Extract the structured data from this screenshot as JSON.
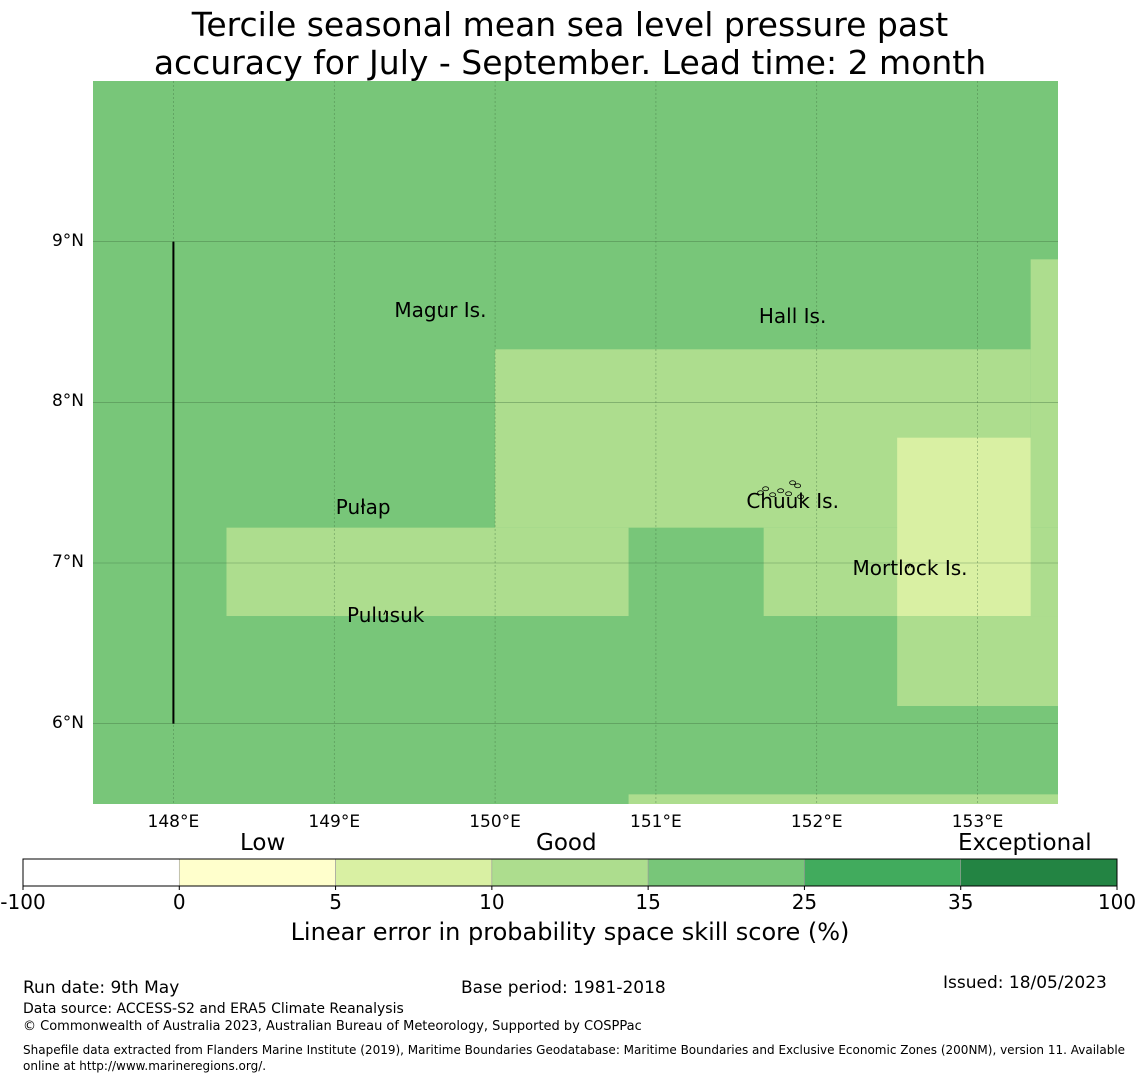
{
  "title": [
    "Tercile seasonal mean sea level pressure past",
    "accuracy for July - September. Lead time: 2 month"
  ],
  "map": {
    "lon_range": [
      147.5,
      153.5
    ],
    "lat_range": [
      5.5,
      10.0
    ],
    "lat_ticks": [
      {
        "value": 9,
        "label": "9°N"
      },
      {
        "value": 8,
        "label": "8°N"
      },
      {
        "value": 7,
        "label": "7°N"
      },
      {
        "value": 6,
        "label": "6°N"
      }
    ],
    "lon_ticks": [
      {
        "value": 148,
        "label": "148°E"
      },
      {
        "value": 149,
        "label": "149°E"
      },
      {
        "value": 150,
        "label": "150°E"
      },
      {
        "value": 151,
        "label": "151°E"
      },
      {
        "value": 152,
        "label": "152°E"
      },
      {
        "value": 153,
        "label": "153°E"
      }
    ],
    "background_class": "15-25",
    "skill_cells": [
      {
        "lon": [
          150.0,
          153.33
        ],
        "lat": [
          7.22,
          8.33
        ],
        "class": "10-15"
      },
      {
        "lon": [
          153.33,
          153.5
        ],
        "lat": [
          7.22,
          8.89
        ],
        "class": "10-15"
      },
      {
        "lon": [
          148.33,
          150.83
        ],
        "lat": [
          6.67,
          7.22
        ],
        "class": "10-15"
      },
      {
        "lon": [
          151.67,
          153.5
        ],
        "lat": [
          6.67,
          7.22
        ],
        "class": "10-15"
      },
      {
        "lon": [
          152.5,
          153.5
        ],
        "lat": [
          6.11,
          6.67
        ],
        "class": "10-15"
      },
      {
        "lon": [
          152.5,
          153.33
        ],
        "lat": [
          6.67,
          7.78
        ],
        "class": "5-10"
      },
      {
        "lon": [
          150.83,
          153.5
        ],
        "lat": [
          5.5,
          5.56
        ],
        "class": "10-15"
      }
    ],
    "boundary_line": {
      "lon": 148.0,
      "lat": [
        6.0,
        9.0
      ]
    },
    "places": [
      {
        "name": "Magur Is.",
        "lon": 149.66,
        "lat": 8.59
      },
      {
        "name": "Hall Is.",
        "lon": 151.85,
        "lat": 8.55
      },
      {
        "name": "Pulap",
        "lon": 149.18,
        "lat": 7.36
      },
      {
        "name": "Chuuk Is.",
        "lon": 151.85,
        "lat": 7.4
      },
      {
        "name": "Mortlock Is.",
        "lon": 152.58,
        "lat": 6.98
      },
      {
        "name": "Pulusuk",
        "lon": 149.32,
        "lat": 6.69
      }
    ]
  },
  "colorbar": {
    "categories": [
      "Low",
      "Good",
      "Exceptional"
    ],
    "bins": [
      {
        "range": "-100 to 0",
        "color": "#ffffff"
      },
      {
        "range": "0 to 5",
        "color": "#ffffcc"
      },
      {
        "range": "5 to 10",
        "color": "#d9f0a3"
      },
      {
        "range": "10 to 15",
        "color": "#addd8e"
      },
      {
        "range": "15 to 25",
        "color": "#78c679"
      },
      {
        "range": "25 to 35",
        "color": "#41ab5d"
      },
      {
        "range": "35 to 100",
        "color": "#238443"
      }
    ],
    "tick_labels": [
      "-100",
      "0",
      "5",
      "10",
      "15",
      "25",
      "35",
      "100"
    ],
    "label": "Linear error in probability space skill score (%)"
  },
  "footer": {
    "run_date": "Run date: 9th May",
    "base_period": "Base period: 1981-2018",
    "issued": "Issued: 18/05/2023",
    "data_source": "Data source: ACCESS-S2 and ERA5 Climate Reanalysis",
    "copyright": "© Commonwealth of Australia 2023, Australian Bureau of Meteorology, Supported by COSPPac",
    "shapefile_line1": "Shapefile data extracted from Flanders Marine Institute (2019), Maritime Boundaries Geodatabase: Maritime Boundaries and Exclusive Economic Zones (200NM), version 11. Available",
    "shapefile_line2": "online at http://www.marineregions.org/."
  }
}
